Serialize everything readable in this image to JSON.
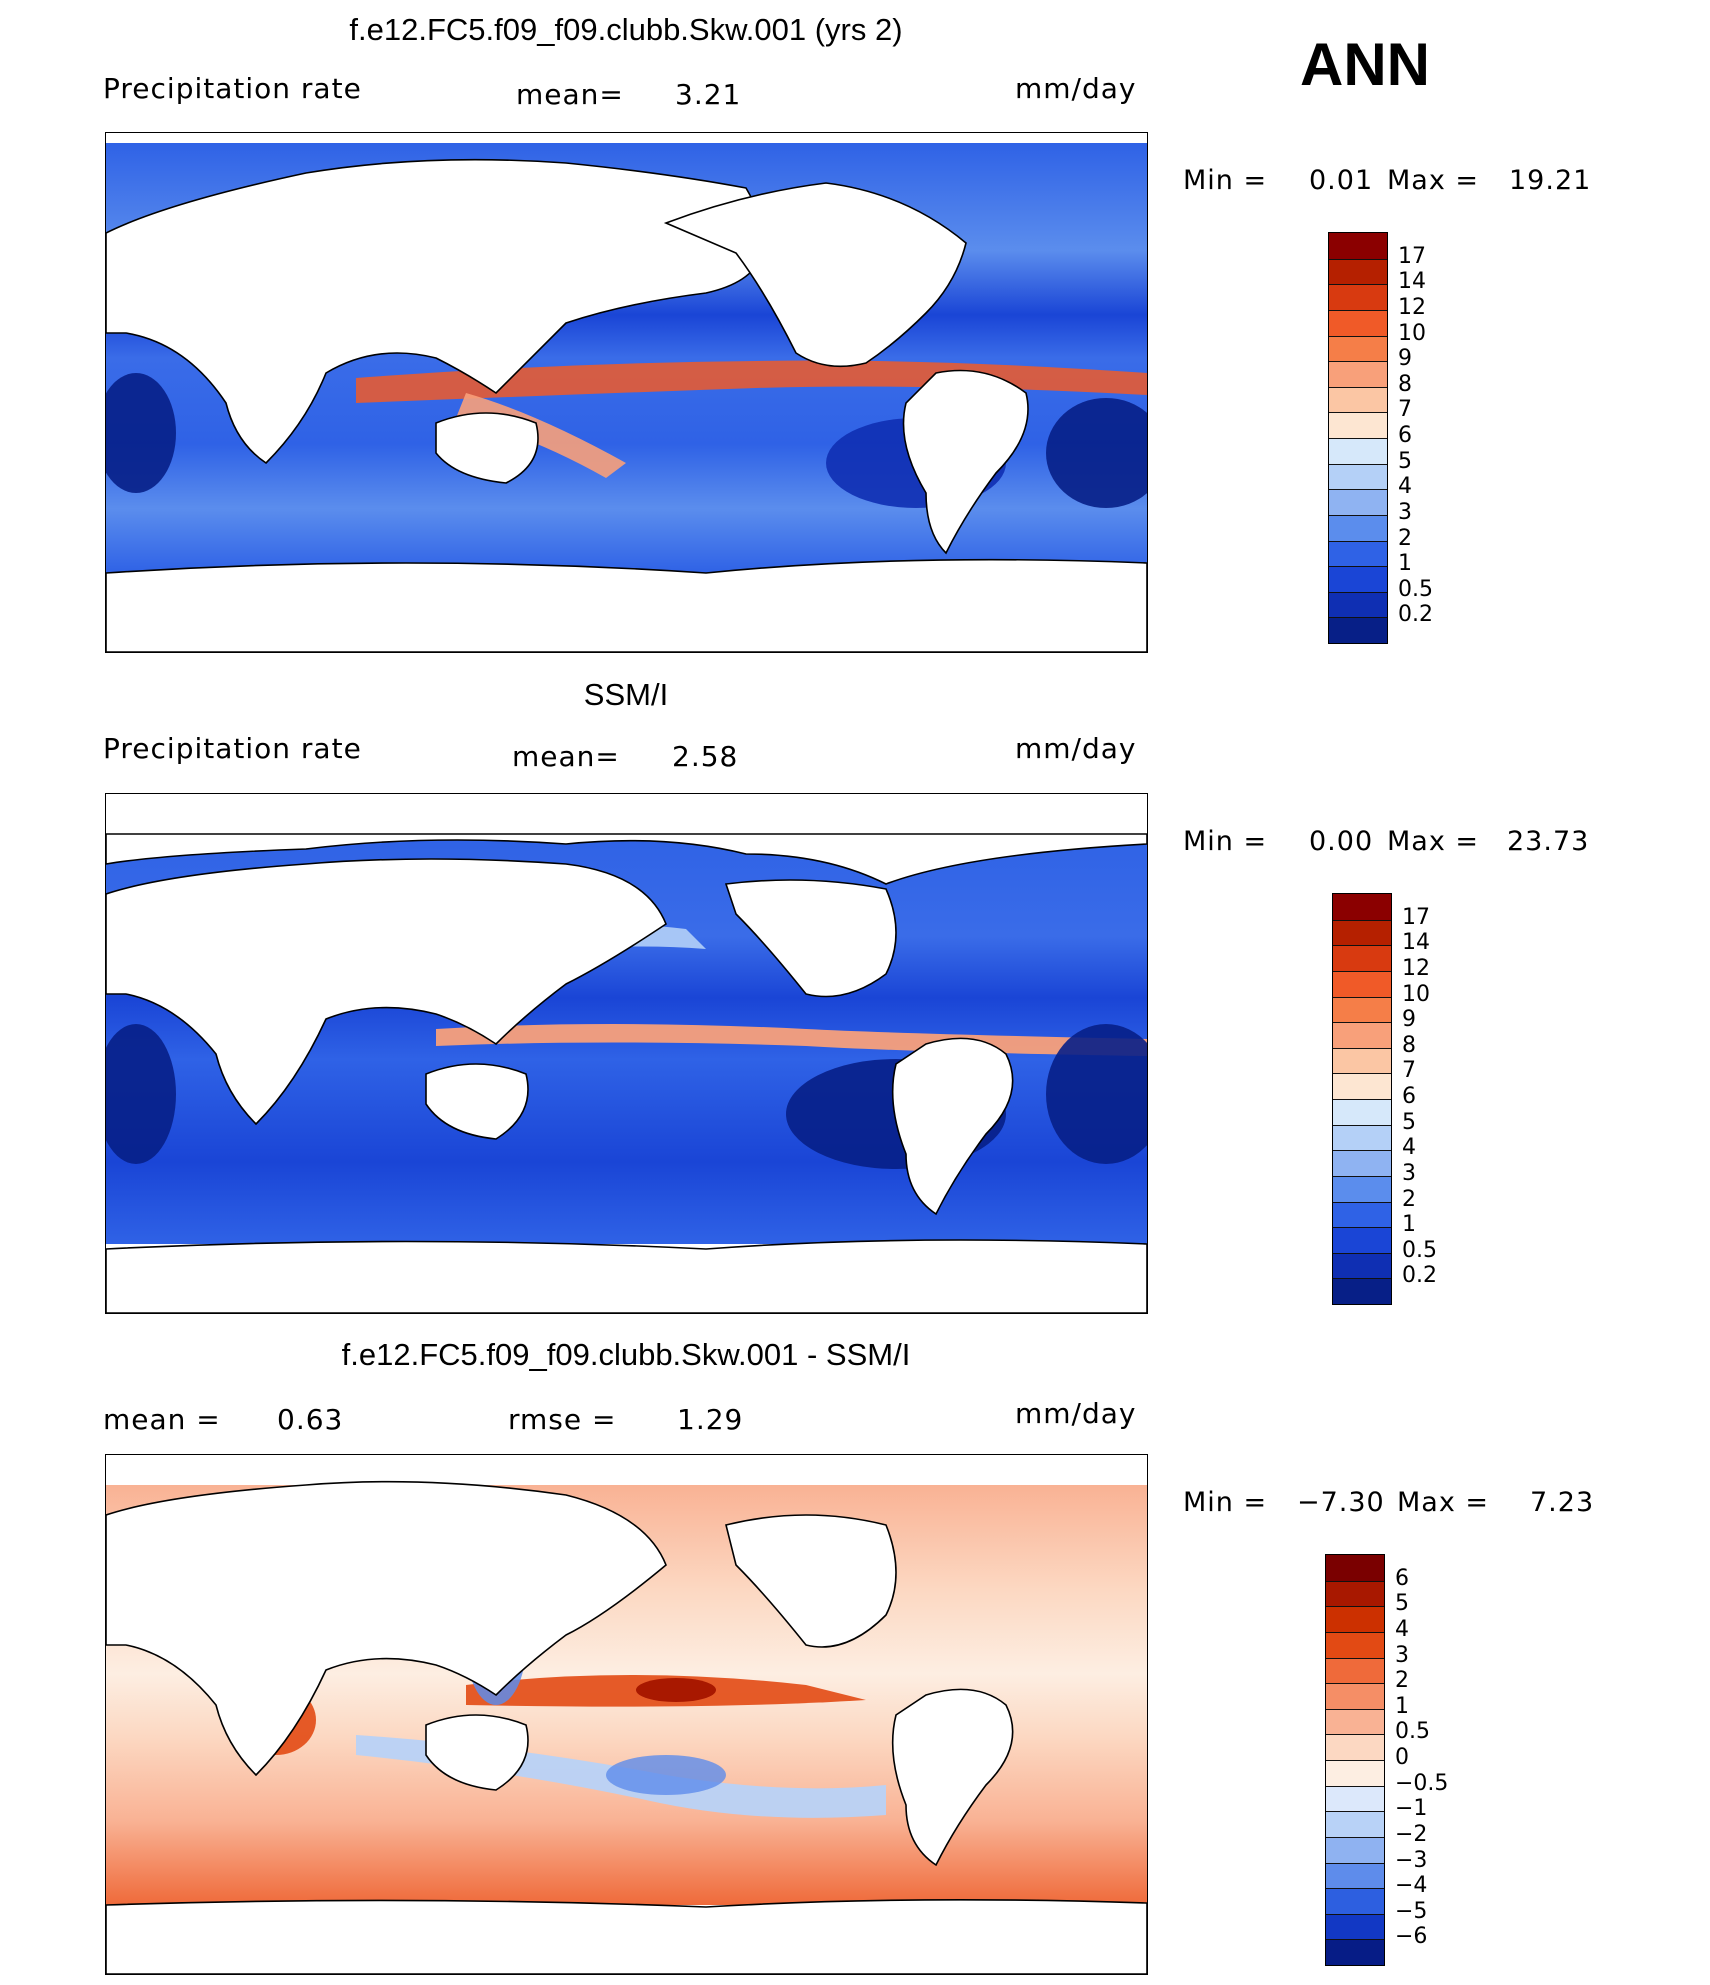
{
  "season": "ANN",
  "chart_data": [
    {
      "type": "heatmap",
      "title": "f.e12.FC5.f09_f09.clubb.Skw.001 (yrs 2)",
      "variable": "Precipitation rate",
      "mean_label": "mean=",
      "mean": "3.21",
      "units": "mm/day",
      "min_label": "Min =",
      "min": "0.01",
      "max_label": "Max =",
      "max": "19.21",
      "colorbar_levels": [
        "17",
        "14",
        "12",
        "10",
        "9",
        "8",
        "7",
        "6",
        "5",
        "4",
        "3",
        "2",
        "1",
        "0.5",
        "0.2"
      ],
      "colorbar_colors": [
        "#8b0000",
        "#b52000",
        "#d83a10",
        "#f05a28",
        "#f57e48",
        "#f8a07a",
        "#fbc6a4",
        "#fde6d2",
        "#d6e8fa",
        "#b4d0f7",
        "#8fb3f2",
        "#5b8ded",
        "#2f62e6",
        "#1a45d6",
        "#0f2fb3",
        "#071f87"
      ]
    },
    {
      "type": "heatmap",
      "title": "SSM/I",
      "variable": "Precipitation rate",
      "mean_label": "mean=",
      "mean": "2.58",
      "units": "mm/day",
      "min_label": "Min =",
      "min": "0.00",
      "max_label": "Max =",
      "max": "23.73",
      "colorbar_levels": [
        "17",
        "14",
        "12",
        "10",
        "9",
        "8",
        "7",
        "6",
        "5",
        "4",
        "3",
        "2",
        "1",
        "0.5",
        "0.2"
      ],
      "colorbar_colors": [
        "#8b0000",
        "#b52000",
        "#d83a10",
        "#f05a28",
        "#f57e48",
        "#f8a07a",
        "#fbc6a4",
        "#fde6d2",
        "#d6e8fa",
        "#b4d0f7",
        "#8fb3f2",
        "#5b8ded",
        "#2f62e6",
        "#1a45d6",
        "#0f2fb3",
        "#071f87"
      ]
    },
    {
      "type": "heatmap",
      "title": "f.e12.FC5.f09_f09.clubb.Skw.001 - SSM/I",
      "mean_label": "mean =",
      "mean": "0.63",
      "rmse_label": "rmse =",
      "rmse": "1.29",
      "units": "mm/day",
      "min_label": "Min =",
      "min": "−7.30",
      "max_label": "Max =",
      "max": "7.23",
      "colorbar_levels": [
        "6",
        "5",
        "4",
        "3",
        "2",
        "1",
        "0.5",
        "0",
        "−0.5",
        "−1",
        "−2",
        "−3",
        "−4",
        "−5",
        "−6"
      ],
      "colorbar_colors": [
        "#7a0000",
        "#a81800",
        "#cc3000",
        "#e24a14",
        "#ef6a3a",
        "#f58e66",
        "#f9b294",
        "#fcd8c2",
        "#fdeee2",
        "#dce8fb",
        "#b8d2f7",
        "#8fb2f1",
        "#5e8ceb",
        "#2d5fe0",
        "#1238c4",
        "#061c86"
      ]
    }
  ]
}
